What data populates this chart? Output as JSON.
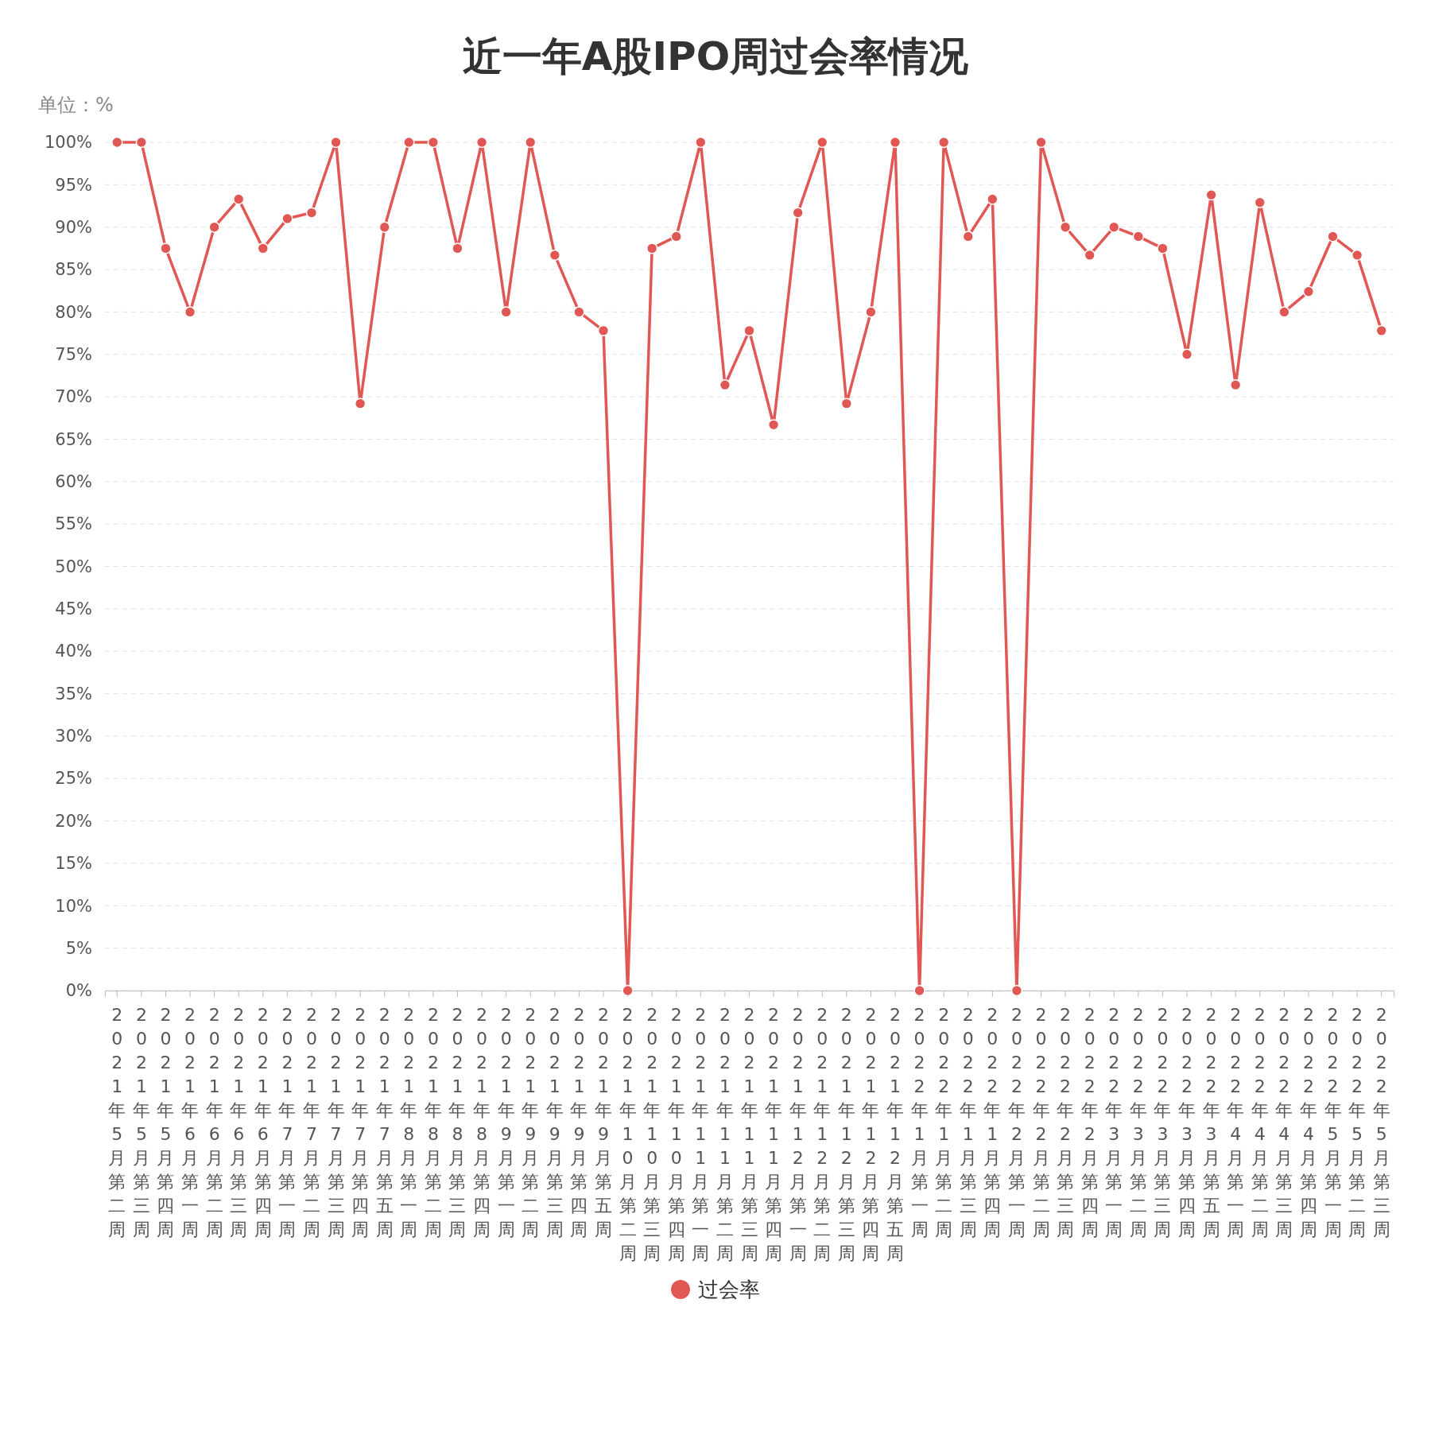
{
  "chart_data": {
    "type": "line",
    "title": "近一年A股IPO周过会率情况",
    "ylabel": "单位：%",
    "categories": [
      "2021年5月第二周",
      "2021年5月第三周",
      "2021年5月第四周",
      "2021年6月第一周",
      "2021年6月第二周",
      "2021年6月第三周",
      "2021年6月第四周",
      "2021年7月第一周",
      "2021年7月第二周",
      "2021年7月第三周",
      "2021年7月第四周",
      "2021年7月第五周",
      "2021年8月第一周",
      "2021年8月第二周",
      "2021年8月第三周",
      "2021年8月第四周",
      "2021年9月第一周",
      "2021年9月第二周",
      "2021年9月第三周",
      "2021年9月第四周",
      "2021年9月第五周",
      "2021年10月第二周",
      "2021年10月第三周",
      "2021年10月第四周",
      "2021年11月第一周",
      "2021年11月第二周",
      "2021年11月第三周",
      "2021年11月第四周",
      "2021年12月第一周",
      "2021年12月第二周",
      "2021年12月第三周",
      "2021年12月第四周",
      "2021年12月第五周",
      "2022年1月第一周",
      "2022年1月第二周",
      "2022年1月第三周",
      "2022年1月第四周",
      "2022年2月第一周",
      "2022年2月第二周",
      "2022年2月第三周",
      "2022年2月第四周",
      "2022年3月第一周",
      "2022年3月第二周",
      "2022年3月第三周",
      "2022年3月第四周",
      "2022年3月第五周",
      "2022年4月第一周",
      "2022年4月第二周",
      "2022年4月第三周",
      "2022年4月第四周",
      "2022年5月第一周",
      "2022年5月第二周",
      "2022年5月第三周"
    ],
    "series": [
      {
        "name": "过会率",
        "color": "#e05753",
        "values": [
          100,
          100,
          87.5,
          80,
          90,
          93.3,
          87.5,
          91,
          91.7,
          100,
          69.2,
          90,
          100,
          100,
          87.5,
          100,
          80,
          100,
          86.7,
          80,
          77.8,
          0,
          87.5,
          88.9,
          100,
          71.4,
          77.8,
          66.7,
          91.7,
          100,
          69.2,
          80,
          100,
          0,
          100,
          88.9,
          93.3,
          0,
          100,
          90,
          86.7,
          90,
          88.9,
          87.5,
          75,
          93.8,
          71.4,
          92.9,
          80,
          82.4,
          88.9,
          86.7,
          77.8
        ]
      }
    ],
    "ylim": [
      0,
      100
    ],
    "yticks": [
      {
        "value": 0,
        "label": "0%"
      },
      {
        "value": 5,
        "label": "5%"
      },
      {
        "value": 10,
        "label": "10%"
      },
      {
        "value": 15,
        "label": "15%"
      },
      {
        "value": 20,
        "label": "20%"
      },
      {
        "value": 25,
        "label": "25%"
      },
      {
        "value": 30,
        "label": "30%"
      },
      {
        "value": 35,
        "label": "35%"
      },
      {
        "value": 40,
        "label": "40%"
      },
      {
        "value": 45,
        "label": "45%"
      },
      {
        "value": 50,
        "label": "50%"
      },
      {
        "value": 55,
        "label": "55%"
      },
      {
        "value": 60,
        "label": "60%"
      },
      {
        "value": 65,
        "label": "65%"
      },
      {
        "value": 70,
        "label": "70%"
      },
      {
        "value": 75,
        "label": "75%"
      },
      {
        "value": 80,
        "label": "80%"
      },
      {
        "value": 85,
        "label": "85%"
      },
      {
        "value": 90,
        "label": "90%"
      },
      {
        "value": 95,
        "label": "95%"
      },
      {
        "value": 100,
        "label": "100%"
      }
    ],
    "grid": "y",
    "legend": "bottom",
    "marker": "circle",
    "line_style": "solid"
  }
}
